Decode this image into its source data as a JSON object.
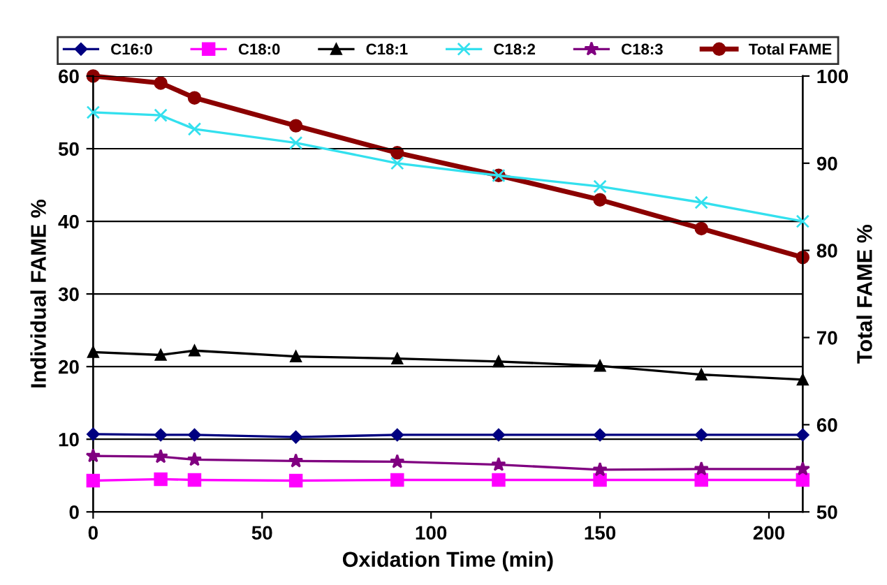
{
  "chart_data": {
    "type": "line",
    "xlabel": "Oxidation Time (min)",
    "ylabel": "Individual FAME %",
    "y2label": "Total FAME %",
    "x": [
      0,
      20,
      30,
      60,
      90,
      120,
      150,
      180,
      210
    ],
    "xlim": [
      0,
      210
    ],
    "xticks": [
      0,
      50,
      100,
      150,
      200
    ],
    "ylim": [
      0,
      60
    ],
    "yticks": [
      0,
      10,
      20,
      30,
      40,
      50,
      60
    ],
    "y2lim": [
      50,
      100
    ],
    "y2ticks": [
      50,
      60,
      70,
      80,
      90,
      100
    ],
    "grid": "y",
    "legend": "top",
    "series": [
      {
        "name": "C16:0",
        "color": "#000080",
        "marker": "diamond",
        "values": [
          10.7,
          10.6,
          10.6,
          10.3,
          10.6,
          10.6,
          10.6,
          10.6,
          10.6
        ]
      },
      {
        "name": "C18:0",
        "color": "#ff00ff",
        "marker": "square",
        "values": [
          4.3,
          4.5,
          4.4,
          4.3,
          4.4,
          4.4,
          4.4,
          4.4,
          4.4
        ]
      },
      {
        "name": "C18:1",
        "color": "#000000",
        "marker": "triangle",
        "values": [
          22,
          21.6,
          22.2,
          21.4,
          21.1,
          20.7,
          20.1,
          18.9,
          18.2
        ]
      },
      {
        "name": "C18:2",
        "color": "#33e0ee",
        "marker": "cross",
        "values": [
          55,
          54.6,
          52.7,
          50.8,
          48,
          46.3,
          44.8,
          42.6,
          40
        ]
      },
      {
        "name": "C18:3",
        "color": "#800080",
        "marker": "star",
        "values": [
          7.7,
          7.6,
          7.2,
          7,
          6.9,
          6.5,
          5.8,
          5.9,
          5.9
        ]
      },
      {
        "name": "Total FAME",
        "color": "#8b0000",
        "marker": "circle",
        "axis": "y2",
        "values": [
          100,
          99.2,
          97.5,
          94.3,
          91.2,
          88.6,
          85.8,
          82.5,
          79.2
        ]
      }
    ]
  }
}
